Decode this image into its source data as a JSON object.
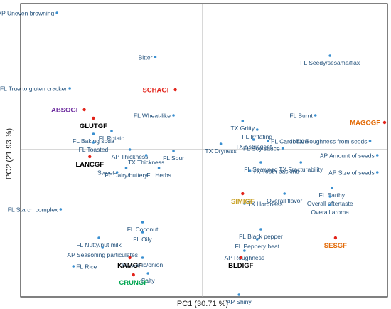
{
  "chart_data": {
    "type": "scatter",
    "xlabel": "PC1 (30.71 %)",
    "ylabel": "PC2 (21.93 %)",
    "xlim": [
      -1.0,
      1.0
    ],
    "ylim": [
      -1.0,
      1.0
    ],
    "grid": false,
    "legend": "none",
    "colors": {
      "attribute_point": "#3a8fd0",
      "attribute_text": "#1f4e79",
      "sample_point": "#e2231a",
      "axis": "#b0b0b0",
      "border": "#000000"
    },
    "attributes": [
      {
        "label": "AP Uneven browning",
        "x": -0.8,
        "y": 0.96,
        "anchor": "end"
      },
      {
        "label": "Bitter",
        "x": -0.26,
        "y": 0.65,
        "anchor": "end"
      },
      {
        "label": "FL Seedy/sesame/flax",
        "x": 0.7,
        "y": 0.66,
        "anchor": "middle"
      },
      {
        "label": "FL True to gluten cracker",
        "x": -0.73,
        "y": 0.43,
        "anchor": "end"
      },
      {
        "label": "FL Wheat-like",
        "x": -0.16,
        "y": 0.24,
        "anchor": "end"
      },
      {
        "label": "TX Gritty",
        "x": 0.22,
        "y": 0.2,
        "anchor": "middle"
      },
      {
        "label": "FL Burnt",
        "x": 0.62,
        "y": 0.24,
        "anchor": "end"
      },
      {
        "label": "FL Irritating",
        "x": 0.3,
        "y": 0.14,
        "anchor": "middle"
      },
      {
        "label": "FL Baking soda",
        "x": -0.6,
        "y": 0.11,
        "anchor": "middle"
      },
      {
        "label": "FL Potato",
        "x": -0.5,
        "y": 0.13,
        "anchor": "middle"
      },
      {
        "label": "TX Astringent",
        "x": 0.28,
        "y": 0.07,
        "anchor": "middle"
      },
      {
        "label": "TX Dryness",
        "x": 0.1,
        "y": 0.04,
        "anchor": "middle"
      },
      {
        "label": "FL Cardboard",
        "x": 0.36,
        "y": 0.06,
        "anchor": "start"
      },
      {
        "label": "FL Toasted",
        "x": -0.6,
        "y": 0.05,
        "anchor": "middle"
      },
      {
        "label": "FL Soy sauce",
        "x": 0.44,
        "y": 0.01,
        "anchor": "end"
      },
      {
        "label": "AP Thickness",
        "x": -0.4,
        "y": 0.0,
        "anchor": "middle"
      },
      {
        "label": "FL Sour",
        "x": -0.16,
        "y": -0.01,
        "anchor": "middle"
      },
      {
        "label": "TX Thickness",
        "x": -0.31,
        "y": -0.04,
        "anchor": "middle"
      },
      {
        "label": "FL Seaweed",
        "x": 0.32,
        "y": -0.09,
        "anchor": "middle"
      },
      {
        "label": "TX Fracturability",
        "x": 0.54,
        "y": -0.09,
        "anchor": "middle"
      },
      {
        "label": "FL Dairy/buttery",
        "x": -0.42,
        "y": -0.13,
        "anchor": "middle"
      },
      {
        "label": "FL Herbs",
        "x": -0.24,
        "y": -0.13,
        "anchor": "middle"
      },
      {
        "label": "Sweet",
        "x": -0.47,
        "y": -0.16,
        "anchor": "end"
      },
      {
        "label": "TX Tooth packing",
        "x": 0.26,
        "y": -0.15,
        "anchor": "start"
      },
      {
        "label": "AP Size of seeds",
        "x": 0.96,
        "y": -0.16,
        "anchor": "end"
      },
      {
        "label": "TX Roughness from seeds",
        "x": 0.92,
        "y": 0.06,
        "anchor": "end"
      },
      {
        "label": "AP Amount of seeds",
        "x": 0.96,
        "y": -0.04,
        "anchor": "end"
      },
      {
        "label": "FL Earthy",
        "x": 0.71,
        "y": -0.27,
        "anchor": "middle"
      },
      {
        "label": "Overall flavor",
        "x": 0.45,
        "y": -0.31,
        "anchor": "middle"
      },
      {
        "label": "Overall aftertaste",
        "x": 0.7,
        "y": -0.33,
        "anchor": "middle"
      },
      {
        "label": "TX Hardness",
        "x": 0.23,
        "y": -0.38,
        "anchor": "start"
      },
      {
        "label": "Overall aroma",
        "x": 0.7,
        "y": -0.39,
        "anchor": "middle"
      },
      {
        "label": "FL Starch complex",
        "x": -0.78,
        "y": -0.42,
        "anchor": "end"
      },
      {
        "label": "FL Coconut",
        "x": -0.33,
        "y": -0.51,
        "anchor": "middle"
      },
      {
        "label": "FL Oily",
        "x": -0.33,
        "y": -0.58,
        "anchor": "middle"
      },
      {
        "label": "FL Black pepper",
        "x": 0.32,
        "y": -0.56,
        "anchor": "middle"
      },
      {
        "label": "FL Nutty/nut milk",
        "x": -0.57,
        "y": -0.62,
        "anchor": "middle"
      },
      {
        "label": "FL Peppery heat",
        "x": 0.3,
        "y": -0.63,
        "anchor": "middle"
      },
      {
        "label": "AP Seasoning particulates",
        "x": -0.55,
        "y": -0.69,
        "anchor": "middle"
      },
      {
        "label": "AP Roughness",
        "x": 0.23,
        "y": -0.71,
        "anchor": "middle"
      },
      {
        "label": "FL Garlic/onion",
        "x": -0.33,
        "y": -0.76,
        "anchor": "middle"
      },
      {
        "label": "FL Rice",
        "x": -0.71,
        "y": -0.82,
        "anchor": "start"
      },
      {
        "label": "Salty",
        "x": -0.3,
        "y": -0.87,
        "anchor": "middle"
      },
      {
        "label": "AP Shiny",
        "x": 0.2,
        "y": -1.5,
        "anchor": "middle"
      }
    ],
    "samples": [
      {
        "label": "SCHAGF",
        "x": -0.15,
        "y": 0.42,
        "color": "#e2231a",
        "anchor": "end"
      },
      {
        "label": "ABSOGF",
        "x": -0.65,
        "y": 0.28,
        "color": "#7030a0",
        "anchor": "end"
      },
      {
        "label": "MAGOGF",
        "x": 1.0,
        "y": 0.19,
        "color": "#e36c0a",
        "anchor": "end"
      },
      {
        "label": "GLUTGF",
        "x": -0.6,
        "y": 0.22,
        "color": "#000000",
        "anchor": "middle"
      },
      {
        "label": "LANCGF",
        "x": -0.62,
        "y": -0.05,
        "color": "#000000",
        "anchor": "middle"
      },
      {
        "label": "SIMIGF",
        "x": 0.22,
        "y": -0.31,
        "color": "#c9a227",
        "anchor": "middle"
      },
      {
        "label": "SESGF",
        "x": 0.73,
        "y": -0.62,
        "color": "#e36c0a",
        "anchor": "middle"
      },
      {
        "label": "BLDIGF",
        "x": 0.21,
        "y": -0.76,
        "color": "#000000",
        "anchor": "middle"
      },
      {
        "label": "KAMGF",
        "x": -0.4,
        "y": -0.76,
        "color": "#000000",
        "anchor": "middle"
      },
      {
        "label": "CRUNGF",
        "x": -0.38,
        "y": -0.88,
        "color": "#00a651",
        "anchor": "middle"
      }
    ]
  }
}
